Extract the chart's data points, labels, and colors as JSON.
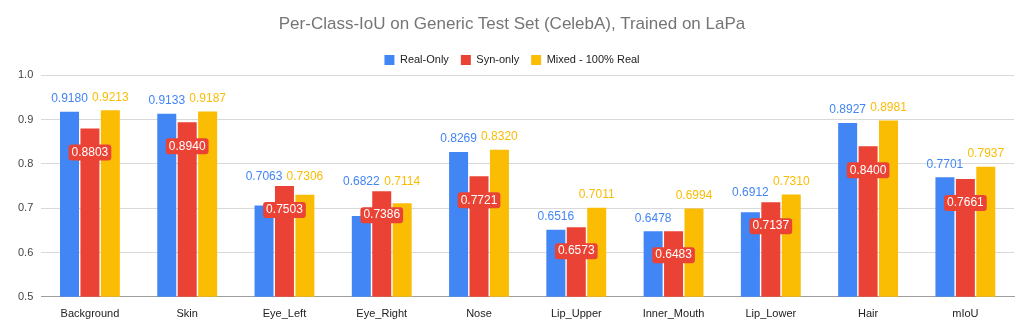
{
  "chart_data": {
    "type": "bar",
    "title": "Per-Class-IoU on Generic Test Set (CelebA), Trained on LaPa",
    "categories": [
      "Background",
      "Skin",
      "Eye_Left",
      "Eye_Right",
      "Nose",
      "Lip_Upper",
      "Inner_Mouth",
      "Lip_Lower",
      "Hair",
      "mIoU"
    ],
    "series": [
      {
        "name": "Real-Only",
        "color": "#4285f4",
        "values": [
          0.918,
          0.9133,
          0.7063,
          0.6822,
          0.8269,
          0.6516,
          0.6478,
          0.6912,
          0.8927,
          0.7701
        ],
        "value_labels": [
          "0.9180",
          "0.9133",
          "0.7063",
          "0.6822",
          "0.8269",
          "0.6516",
          "0.6478",
          "0.6912",
          "0.8927",
          "0.7701"
        ]
      },
      {
        "name": "Syn-only",
        "color": "#ea4335",
        "values": [
          0.8803,
          0.894,
          0.7503,
          0.7386,
          0.7721,
          0.6573,
          0.6483,
          0.7137,
          0.84,
          0.7661
        ],
        "value_labels": [
          "0.8803",
          "0.8940",
          "0.7503",
          "0.7386",
          "0.7721",
          "0.6573",
          "0.6483",
          "0.7137",
          "0.8400",
          "0.7661"
        ]
      },
      {
        "name": "Mixed - 100% Real",
        "color": "#fbbc04",
        "values": [
          0.9213,
          0.9187,
          0.7306,
          0.7114,
          0.832,
          0.7011,
          0.6994,
          0.731,
          0.8981,
          0.7937
        ],
        "value_labels": [
          "0.9213",
          "0.9187",
          "0.7306",
          "0.7114",
          "0.8320",
          "0.7011",
          "0.6994",
          "0.7310",
          "0.8981",
          "0.7937"
        ]
      }
    ],
    "ylim": [
      0.5,
      1.0
    ],
    "yticks": [
      0.5,
      {
        "value": 0.6,
        "label": "0.6"
      },
      {
        "value": 0.7,
        "label": "0.7"
      },
      {
        "value": 0.8,
        "label": "0.8"
      },
      {
        "value": 0.9,
        "label": "0.9"
      },
      {
        "value": 1.0,
        "label": "1.0"
      }
    ],
    "grid": "y",
    "legend": "top"
  }
}
